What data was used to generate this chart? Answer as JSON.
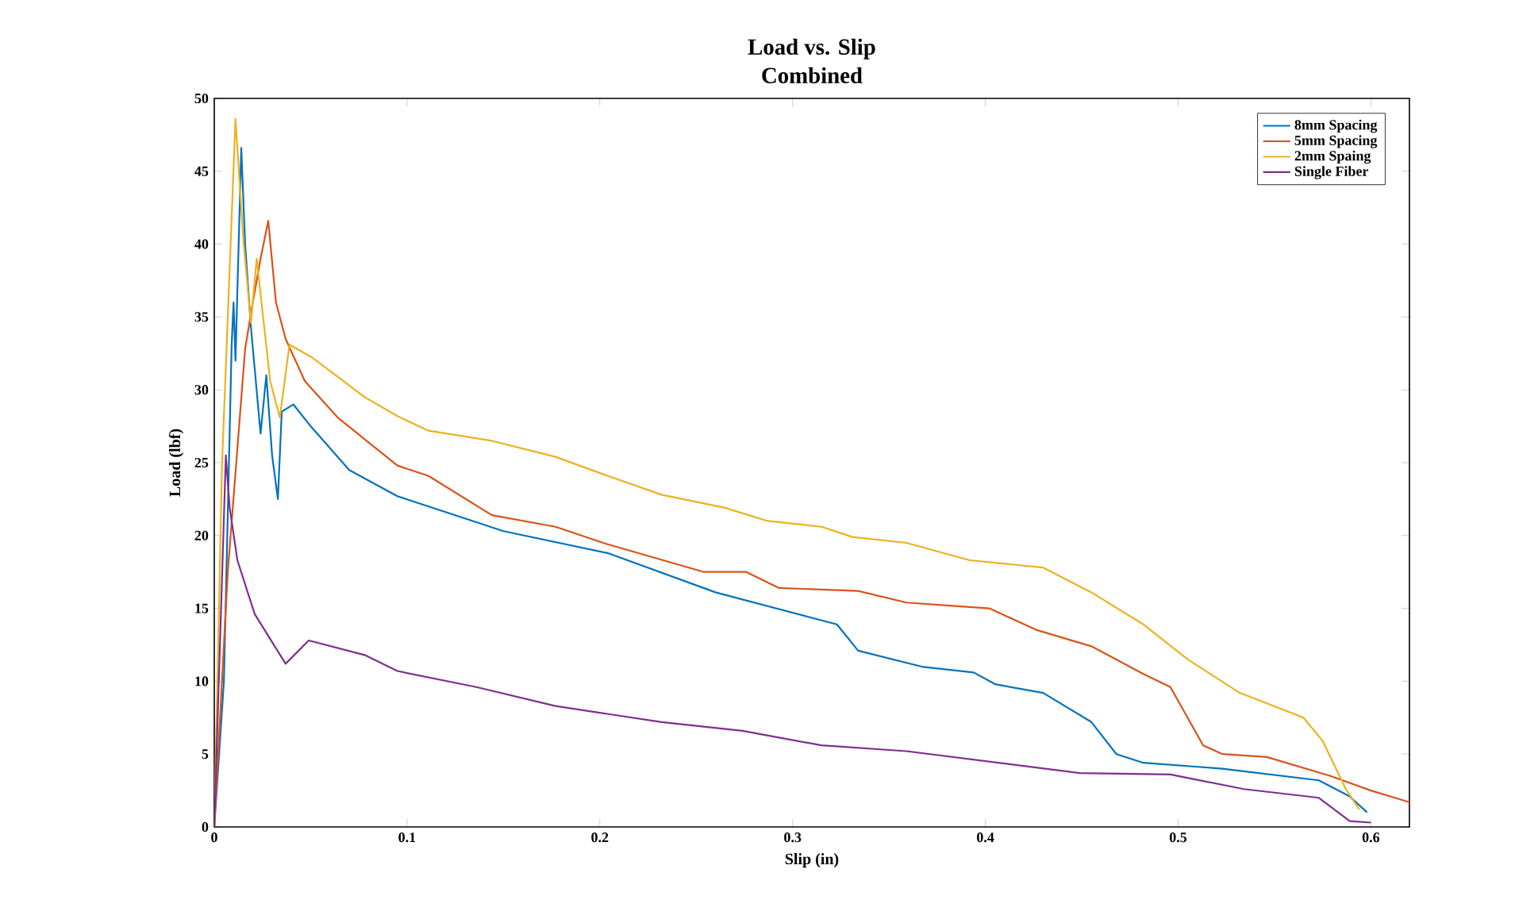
{
  "chart_data": {
    "type": "line",
    "title": "Load vs. Slip",
    "subtitle": "Combined",
    "xlabel": "Slip (in)",
    "ylabel": "Load (lbf)",
    "xlim": [
      0,
      0.62
    ],
    "ylim": [
      0,
      50
    ],
    "xticks": [
      0,
      0.1,
      0.2,
      0.3,
      0.4,
      0.5,
      0.6
    ],
    "yticks": [
      0,
      5,
      10,
      15,
      20,
      25,
      30,
      35,
      40,
      45,
      50
    ],
    "legend": "top right",
    "series": [
      {
        "name": "8mm Spacing",
        "color": "#0072bd",
        "x": [
          0,
          0.005,
          0.009,
          0.01,
          0.011,
          0.014,
          0.016,
          0.019,
          0.021,
          0.024,
          0.027,
          0.03,
          0.033,
          0.035,
          0.041,
          0.05,
          0.07,
          0.095,
          0.15,
          0.204,
          0.26,
          0.323,
          0.334,
          0.367,
          0.394,
          0.405,
          0.43,
          0.455,
          0.468,
          0.482,
          0.523,
          0.573,
          0.589,
          0.598
        ],
        "values": [
          0,
          10,
          33,
          36,
          32,
          46.6,
          40,
          34.3,
          31.4,
          27,
          31,
          25.5,
          22.5,
          28.5,
          29,
          27.5,
          24.5,
          22.7,
          20.3,
          18.8,
          16.1,
          13.9,
          12.1,
          11,
          10.6,
          9.8,
          9.2,
          7.2,
          5,
          4.4,
          4,
          3.2,
          2.1,
          1
        ]
      },
      {
        "name": "5mm Spacing",
        "color": "#d95319",
        "x": [
          0,
          0.007,
          0.016,
          0.02,
          0.024,
          0.028,
          0.032,
          0.037,
          0.047,
          0.064,
          0.095,
          0.111,
          0.144,
          0.177,
          0.204,
          0.254,
          0.276,
          0.293,
          0.334,
          0.359,
          0.402,
          0.427,
          0.455,
          0.482,
          0.496,
          0.513,
          0.523,
          0.546,
          0.579,
          0.6,
          0.62
        ],
        "values": [
          0,
          17.5,
          32.8,
          36,
          39,
          41.6,
          36,
          33.5,
          30.6,
          28.1,
          24.8,
          24.1,
          21.4,
          20.6,
          19.4,
          17.5,
          17.5,
          16.4,
          16.2,
          15.4,
          15,
          13.5,
          12.4,
          10.5,
          9.6,
          5.6,
          5,
          4.8,
          3.5,
          2.5,
          1.7
        ]
      },
      {
        "name": "2mm Spaing",
        "color": "#edb120",
        "x": [
          0,
          0.004,
          0.011,
          0.015,
          0.019,
          0.022,
          0.029,
          0.034,
          0.039,
          0.051,
          0.078,
          0.095,
          0.111,
          0.144,
          0.177,
          0.204,
          0.232,
          0.265,
          0.287,
          0.315,
          0.331,
          0.359,
          0.392,
          0.43,
          0.455,
          0.482,
          0.505,
          0.532,
          0.565,
          0.575,
          0.587,
          0.594
        ],
        "values": [
          0,
          24.8,
          48.6,
          40.4,
          34.6,
          39,
          30.6,
          28.1,
          33.1,
          32.2,
          29.5,
          28.2,
          27.2,
          26.5,
          25.4,
          24.1,
          22.8,
          21.9,
          21,
          20.6,
          19.9,
          19.5,
          18.3,
          17.8,
          16.1,
          13.9,
          11.5,
          9.2,
          7.5,
          5.9,
          2.6,
          1.2
        ]
      },
      {
        "name": "Single Fiber",
        "color": "#7e2f8e",
        "x": [
          0,
          0.006,
          0.008,
          0.012,
          0.021,
          0.037,
          0.049,
          0.078,
          0.095,
          0.136,
          0.177,
          0.232,
          0.274,
          0.315,
          0.359,
          0.449,
          0.496,
          0.534,
          0.573,
          0.589,
          0.6
        ],
        "values": [
          0,
          25.5,
          21.9,
          18.3,
          14.6,
          11.2,
          12.8,
          11.8,
          10.7,
          9.6,
          8.3,
          7.2,
          6.6,
          5.6,
          5.2,
          3.7,
          3.6,
          2.6,
          2,
          0.4,
          0.3
        ]
      }
    ]
  }
}
